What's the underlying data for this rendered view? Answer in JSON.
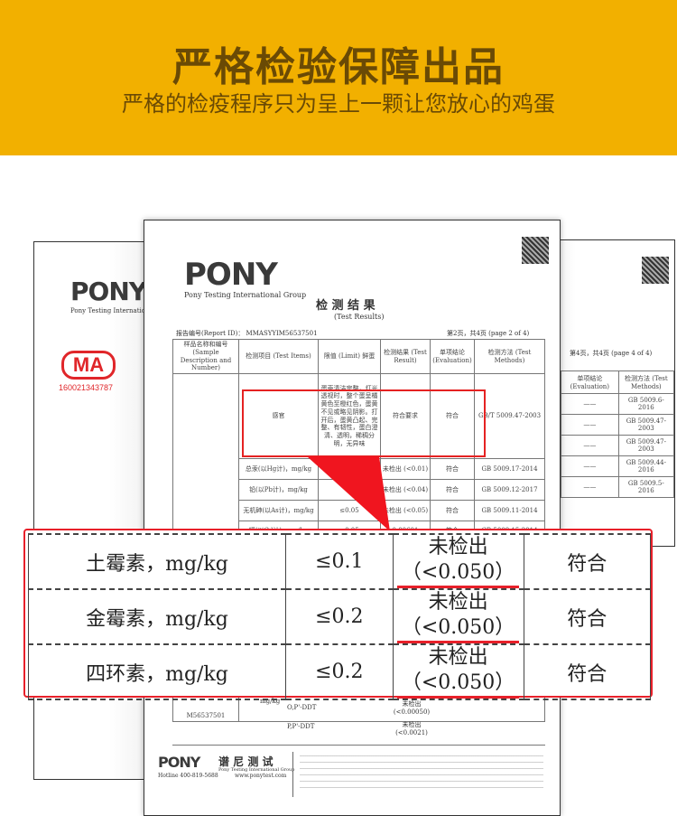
{
  "banner": {
    "title": "严格检验保障出品",
    "subtitle": "严格的检疫程序只为呈上一颗让您放心的鸡蛋",
    "bg_color": "#f2b000",
    "text_color": "#6a4a05"
  },
  "left_page": {
    "logo": "PONY",
    "logo_sub": "Pony Testing International",
    "cma_mark": "MA",
    "cma_number": "160021343787"
  },
  "right_page": {
    "page_info": "第4页，共4页 (page 4 of 4)",
    "headers": [
      "单项结论 (Evaluation)",
      "检测方法 (Test Methods)"
    ],
    "rows": [
      [
        "——",
        "GB 5009.6-2016"
      ],
      [
        "——",
        "GB 5009.47-2003"
      ],
      [
        "——",
        "GB 5009.47-2003"
      ],
      [
        "——",
        "GB 5009.44-2016"
      ],
      [
        "——",
        "GB 5009.5-2016"
      ]
    ]
  },
  "report": {
    "logo": "PONY",
    "logo_sub": "Pony Testing International Group",
    "title": "检 测 结 果",
    "title_en": "(Test Results)",
    "report_id": "报告编号(Report ID)： MMASYYIM56537501",
    "page_info": "第2页，共4页 (page 2 of 4)",
    "headers": [
      "样品名称和编号 (Sample Description and Number)",
      "检测项目 (Test Items)",
      "限值 (Limit) 鲜蛋",
      "检测结果 (Test Result)",
      "单项结论 (Evaluation)",
      "检测方法 (Test Methods)"
    ],
    "sample_number": "M56537501",
    "sensory": {
      "item": "感官",
      "limit": "蛋壳清洁完整，灯光透视时，整个蛋呈橘黄色至橙红色，蛋黄不见或略见阴影。打开后，蛋黄凸起、完整、有韧性，蛋白澄清、透明，稀稠分明，无异味",
      "result": "符合要求",
      "evaluation": "符合",
      "method": "GB/T 5009.47-2003"
    },
    "rows": [
      {
        "item": "总汞(以Hg计)，mg/kg",
        "limit": "",
        "result": "未检出 (<0.01)",
        "evaluation": "符合",
        "method": "GB 5009.17-2014"
      },
      {
        "item": "铅(以Pb计)，mg/kg",
        "limit": "",
        "result": "未检出 (<0.04)",
        "evaluation": "符合",
        "method": "GB 5009.12-2017"
      },
      {
        "item": "无机砷(以As计)，mg/kg",
        "limit": "≤0.05",
        "result": "未检出 (<0.05)",
        "evaluation": "符合",
        "method": "GB 5009.11-2014"
      },
      {
        "item": "镉(以Cd计)，mg/kg",
        "limit": "≤0.05",
        "result": "0.00601",
        "evaluation": "符合",
        "method": "GB 5009.15-2014"
      }
    ],
    "lower_rows": [
      {
        "unit": "mg/kg",
        "item": "O,P'-DDT",
        "result": "未检出 (<0.00050)"
      },
      {
        "item": "P,P'-DDT",
        "result": "未检出 (<0.0021)"
      }
    ],
    "footer": {
      "logo": "PONY",
      "logo_cn": "谱 尼 测 试",
      "group": "Pony Testing International Group",
      "hotline": "Hotline 400-819-5688",
      "website": "www.ponytest.com"
    }
  },
  "highlight_table": {
    "accent_color": "#e8202a",
    "rows": [
      {
        "item": "土霉素，mg/kg",
        "limit": "≤0.1",
        "result": "未检出",
        "result_detail": "（<0.050）",
        "evaluation": "符合"
      },
      {
        "item": "金霉素，mg/kg",
        "limit": "≤0.2",
        "result": "未检出",
        "result_detail": "（<0.050）",
        "evaluation": "符合"
      },
      {
        "item": "四环素，mg/kg",
        "limit": "≤0.2",
        "result": "未检出",
        "result_detail": "（<0.050）",
        "evaluation": "符合"
      }
    ]
  }
}
